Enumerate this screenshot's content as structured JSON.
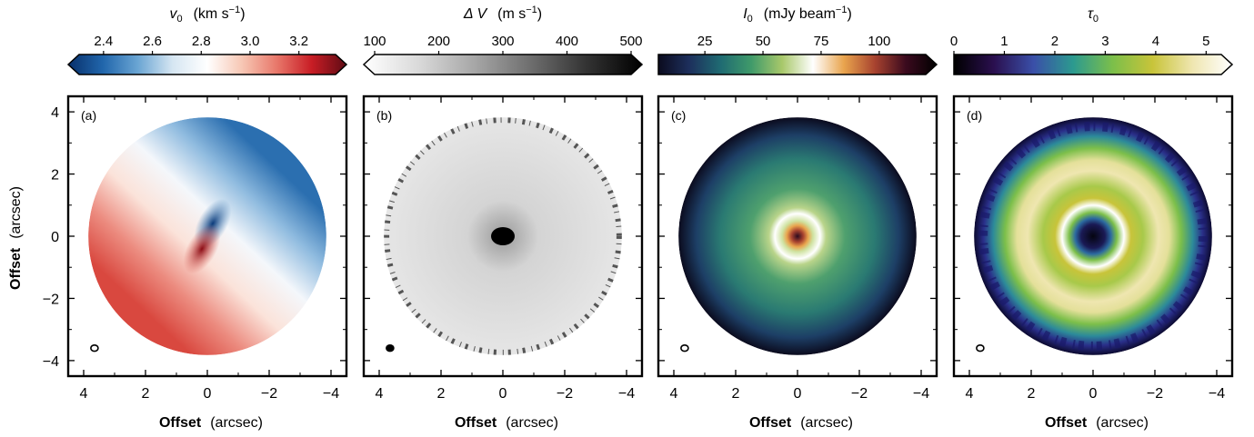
{
  "colors": {
    "frame": "#000000",
    "background": "#ffffff"
  },
  "axes": {
    "xlabel_bold": "Offset",
    "xlabel_unit": "(arcsec)",
    "ylabel_bold": "Offset",
    "ylabel_unit": "(arcsec)",
    "x_ticks": [
      "4",
      "2",
      "0",
      "−2",
      "−4"
    ],
    "y_ticks": [
      "4",
      "2",
      "0",
      "−2",
      "−4"
    ]
  },
  "chart_data": [
    {
      "type": "heatmap",
      "panel_label": "(a)",
      "colorbar": {
        "label_symbol": "v",
        "label_sub": "0",
        "label_unit_main": "(km s",
        "label_unit_sup": "−1",
        "label_unit_close": ")",
        "ticks": [
          "2.4",
          "2.6",
          "2.8",
          "3.0",
          "3.2"
        ],
        "tick_values": [
          2.4,
          2.6,
          2.8,
          3.0,
          3.2
        ],
        "range": [
          2.3,
          3.35
        ],
        "colormap": [
          "#08306b",
          "#2166ac",
          "#6aa5d3",
          "#d6e6f2",
          "#ffffff",
          "#f7c7b4",
          "#e8776a",
          "#c81d25",
          "#5e0b14"
        ],
        "extend": "both"
      },
      "xlim": [
        4.5,
        -4.5
      ],
      "ylim": [
        -4.5,
        4.5
      ],
      "content": "velocity field: blue (low) to north-east, red (high) to south-west, disk radius ~3.8 arcsec"
    },
    {
      "type": "heatmap",
      "panel_label": "(b)",
      "colorbar": {
        "label_symbol": "Δ V",
        "label_sub": "",
        "label_unit_main": "(m s",
        "label_unit_sup": "−1",
        "label_unit_close": ")",
        "ticks": [
          "100",
          "200",
          "300",
          "400",
          "500"
        ],
        "tick_values": [
          100,
          200,
          300,
          400,
          500
        ],
        "range": [
          100,
          500
        ],
        "colormap": [
          "#ffffff",
          "#d9d9d9",
          "#a6a6a6",
          "#6e6e6e",
          "#333333",
          "#000000"
        ],
        "extend": "both"
      },
      "xlim": [
        4.5,
        -4.5
      ],
      "ylim": [
        -4.5,
        4.5
      ],
      "content": "line width map: light gray disk, dark central peak, noisy dark rim"
    },
    {
      "type": "heatmap",
      "panel_label": "(c)",
      "colorbar": {
        "label_symbol": "I",
        "label_sub": "0",
        "label_unit_main": "(mJy beam",
        "label_unit_sup": "−1",
        "label_unit_close": ")",
        "ticks": [
          "25",
          "50",
          "75",
          "100"
        ],
        "tick_values": [
          25,
          50,
          75,
          100
        ],
        "range": [
          5,
          120
        ],
        "colormap": [
          "#0b0b1e",
          "#1d2f5c",
          "#1f6a72",
          "#3f9a6a",
          "#a8c86a",
          "#ffffff",
          "#e9a44d",
          "#a8432f",
          "#3b0a1e",
          "#000000"
        ],
        "extend": "max"
      },
      "xlim": [
        4.5,
        -4.5
      ],
      "ylim": [
        -4.5,
        4.5
      ],
      "content": "peak intensity: bright white ring at ~1 arcsec, orange-red core, dark navy outer edge"
    },
    {
      "type": "heatmap",
      "panel_label": "(d)",
      "colorbar": {
        "label_symbol": "τ",
        "label_sub": "0",
        "label_unit_main": "",
        "label_unit_sup": "",
        "label_unit_close": "",
        "ticks": [
          "0",
          "1",
          "2",
          "3",
          "4",
          "5"
        ],
        "tick_values": [
          0,
          1,
          2,
          3,
          4,
          5
        ],
        "range": [
          0,
          5.3
        ],
        "colormap": [
          "#000000",
          "#2a0f4e",
          "#3a4fa8",
          "#2c9a8f",
          "#7cbf4a",
          "#c8c43a",
          "#efe6b0",
          "#ffffff"
        ],
        "extend": "max"
      },
      "xlim": [
        4.5,
        -4.5
      ],
      "ylim": [
        -4.5,
        4.5
      ],
      "content": "optical depth: dark centre, bright rings at ~1 and ~2.5 arcsec, navy outer rim"
    }
  ]
}
